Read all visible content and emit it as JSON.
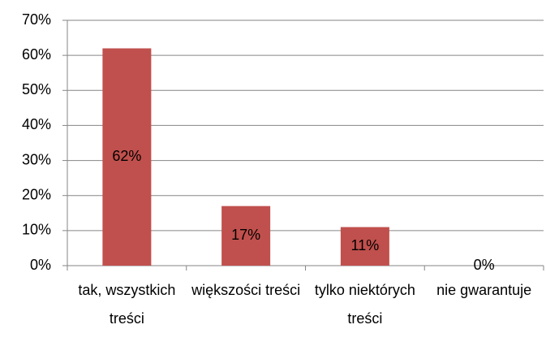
{
  "chart_data": {
    "type": "bar",
    "categories": [
      "tak, wszystkich treści",
      "większości treści",
      "tylko niektórych treści",
      "nie gwarantuje"
    ],
    "values": [
      62,
      17,
      11,
      0
    ],
    "value_labels": [
      "62%",
      "17%",
      "11%",
      "0%"
    ],
    "color": "#c0504d",
    "ylim": [
      0,
      70
    ],
    "yticks": [
      {
        "value": 0,
        "label": "0%"
      },
      {
        "value": 10,
        "label": "10%"
      },
      {
        "value": 20,
        "label": "20%"
      },
      {
        "value": 30,
        "label": "30%"
      },
      {
        "value": 40,
        "label": "40%"
      },
      {
        "value": 50,
        "label": "50%"
      },
      {
        "value": 60,
        "label": "60%"
      },
      {
        "value": 70,
        "label": "70%"
      }
    ],
    "grid": true
  }
}
